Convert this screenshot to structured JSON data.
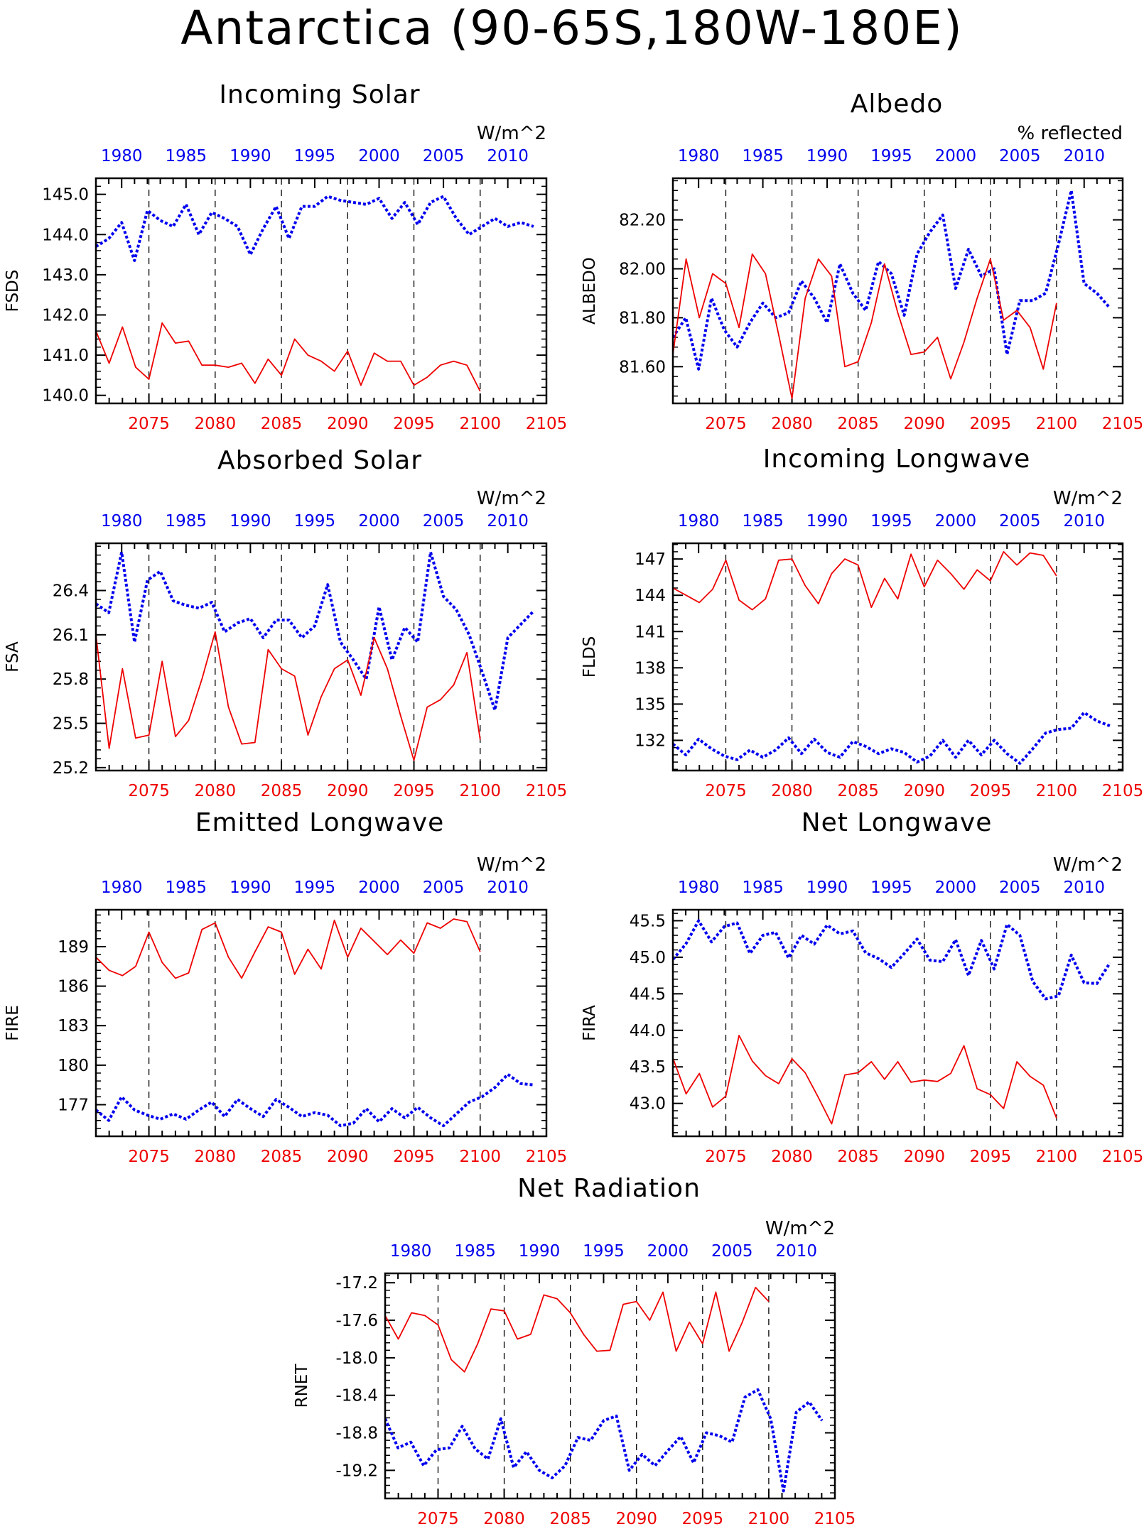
{
  "title": "Antarctica (90-65S,180W-180E)",
  "colors": {
    "ref_series": "#ee0000",
    "model_series": "#0000ee",
    "axis": "#000000"
  },
  "chart_data": [
    {
      "type": "line",
      "title": "Incoming Solar",
      "units": "W/m^2",
      "ylabel": "FSDS",
      "ylim": [
        139.8,
        145.4
      ],
      "yticks": [
        "140.0",
        "141.0",
        "142.0",
        "143.0",
        "144.0",
        "145.0"
      ],
      "top_axis": {
        "range": [
          1978,
          2013
        ],
        "ticks": [
          "1980",
          "1985",
          "1990",
          "1995",
          "2000",
          "2005",
          "2010"
        ]
      },
      "bottom_axis": {
        "range": [
          2071,
          2105
        ],
        "ticks": [
          "2075",
          "2080",
          "2085",
          "2090",
          "2095",
          "2100",
          "2105"
        ]
      },
      "series": [
        {
          "style": "dotted",
          "axis": "top",
          "x_start": 1978,
          "values": [
            143.7,
            143.9,
            144.3,
            143.35,
            144.6,
            144.35,
            144.2,
            144.75,
            144.0,
            144.55,
            144.4,
            144.2,
            143.5,
            144.15,
            144.7,
            143.9,
            144.7,
            144.7,
            144.95,
            144.85,
            144.8,
            144.75,
            144.9,
            144.4,
            144.8,
            144.25,
            144.8,
            144.95,
            144.4,
            144.0,
            144.2,
            144.4,
            144.2,
            144.3,
            144.2
          ]
        },
        {
          "style": "solid",
          "axis": "bottom",
          "x_start": 2071,
          "values": [
            141.6,
            140.8,
            141.7,
            140.7,
            140.4,
            141.8,
            141.3,
            141.35,
            140.75,
            140.75,
            140.7,
            140.8,
            140.3,
            140.9,
            140.5,
            141.4,
            141.0,
            140.85,
            140.6,
            141.1,
            140.25,
            141.05,
            140.85,
            140.85,
            140.25,
            140.45,
            140.75,
            140.85,
            140.75,
            140.1
          ]
        }
      ]
    },
    {
      "type": "line",
      "title": "Albedo",
      "units": "% reflected",
      "ylabel": "ALBEDO",
      "ylim": [
        81.45,
        82.37
      ],
      "yticks": [
        "81.60",
        "81.80",
        "82.00",
        "82.20"
      ],
      "top_axis": {
        "range": [
          1978,
          2013
        ],
        "ticks": [
          "1980",
          "1985",
          "1990",
          "1995",
          "2000",
          "2005",
          "2010"
        ]
      },
      "bottom_axis": {
        "range": [
          2071,
          2105
        ],
        "ticks": [
          "2075",
          "2080",
          "2085",
          "2090",
          "2095",
          "2100",
          "2105"
        ]
      },
      "series": [
        {
          "style": "dotted",
          "axis": "top",
          "x_start": 1978,
          "values": [
            81.72,
            81.8,
            81.59,
            81.88,
            81.75,
            81.68,
            81.78,
            81.86,
            81.8,
            81.82,
            81.95,
            81.88,
            81.78,
            82.02,
            81.9,
            81.83,
            82.03,
            81.98,
            81.81,
            82.06,
            82.15,
            82.22,
            81.92,
            82.08,
            81.97,
            82.0,
            81.65,
            81.87,
            81.87,
            81.9,
            82.1,
            82.32,
            81.94,
            81.9,
            81.84
          ]
        },
        {
          "style": "solid",
          "axis": "bottom",
          "x_start": 2071,
          "values": [
            81.65,
            82.04,
            81.8,
            81.98,
            81.94,
            81.76,
            82.06,
            81.98,
            81.73,
            81.47,
            81.88,
            82.04,
            81.97,
            81.6,
            81.62,
            81.78,
            82.02,
            81.82,
            81.65,
            81.66,
            81.72,
            81.55,
            81.7,
            81.88,
            82.04,
            81.79,
            81.83,
            81.76,
            81.59,
            81.86
          ]
        }
      ]
    },
    {
      "type": "line",
      "title": "Absorbed Solar",
      "units": "W/m^2",
      "ylabel": "FSA",
      "ylim": [
        25.18,
        26.72
      ],
      "yticks": [
        "25.2",
        "25.5",
        "25.8",
        "26.1",
        "26.4"
      ],
      "top_axis": {
        "range": [
          1978,
          2013
        ],
        "ticks": [
          "1980",
          "1985",
          "1990",
          "1995",
          "2000",
          "2005",
          "2010"
        ]
      },
      "bottom_axis": {
        "range": [
          2071,
          2105
        ],
        "ticks": [
          "2075",
          "2080",
          "2085",
          "2090",
          "2095",
          "2100",
          "2105"
        ]
      },
      "series": [
        {
          "style": "dotted",
          "axis": "top",
          "x_start": 1978,
          "values": [
            26.31,
            26.25,
            26.66,
            26.05,
            26.47,
            26.53,
            26.33,
            26.3,
            26.28,
            26.32,
            26.12,
            26.18,
            26.21,
            26.08,
            26.2,
            26.2,
            26.08,
            26.16,
            26.44,
            26.05,
            25.93,
            25.8,
            26.29,
            25.93,
            26.15,
            26.05,
            26.66,
            26.36,
            26.27,
            26.1,
            25.85,
            25.59,
            26.08,
            26.17,
            26.26
          ]
        },
        {
          "style": "solid",
          "axis": "bottom",
          "x_start": 2071,
          "values": [
            26.1,
            25.33,
            25.87,
            25.4,
            25.42,
            25.92,
            25.41,
            25.52,
            25.8,
            26.12,
            25.61,
            25.36,
            25.37,
            26.0,
            25.87,
            25.82,
            25.42,
            25.68,
            25.87,
            25.93,
            25.69,
            26.08,
            25.87,
            25.55,
            25.25,
            25.61,
            25.66,
            25.76,
            25.98,
            25.39
          ]
        }
      ]
    },
    {
      "type": "line",
      "title": "Incoming Longwave",
      "units": "W/m^2",
      "ylabel": "FLDS",
      "ylim": [
        129.5,
        148.3
      ],
      "yticks": [
        "132",
        "135",
        "138",
        "141",
        "144",
        "147"
      ],
      "top_axis": {
        "range": [
          1978,
          2013
        ],
        "ticks": [
          "1980",
          "1985",
          "1990",
          "1995",
          "2000",
          "2005",
          "2010"
        ]
      },
      "bottom_axis": {
        "range": [
          2071,
          2105
        ],
        "ticks": [
          "2075",
          "2080",
          "2085",
          "2090",
          "2095",
          "2100",
          "2105"
        ]
      },
      "series": [
        {
          "style": "dotted",
          "axis": "top",
          "x_start": 1978,
          "values": [
            131.7,
            130.8,
            132.1,
            131.3,
            130.7,
            130.4,
            131.2,
            130.6,
            131.2,
            132.2,
            130.9,
            132.1,
            131.0,
            130.6,
            131.9,
            131.5,
            130.9,
            131.3,
            131.0,
            130.2,
            130.7,
            132.0,
            130.6,
            132.0,
            130.8,
            132.0,
            130.9,
            130.1,
            131.3,
            132.6,
            132.9,
            133.0,
            134.3,
            133.6,
            133.2
          ]
        },
        {
          "style": "solid",
          "axis": "bottom",
          "x_start": 2071,
          "values": [
            144.6,
            144.0,
            143.4,
            144.5,
            146.9,
            143.6,
            142.8,
            143.7,
            146.9,
            147.0,
            144.8,
            143.3,
            145.8,
            147.0,
            146.5,
            143.0,
            145.4,
            143.7,
            147.4,
            144.7,
            146.9,
            145.8,
            144.5,
            146.1,
            145.2,
            147.6,
            146.5,
            147.5,
            147.3,
            145.6
          ]
        }
      ]
    },
    {
      "type": "line",
      "title": "Emitted Longwave",
      "units": "W/m^2",
      "ylabel": "FIRE",
      "ylim": [
        174.6,
        191.8
      ],
      "yticks": [
        "177",
        "180",
        "183",
        "186",
        "189"
      ],
      "top_axis": {
        "range": [
          1978,
          2013
        ],
        "ticks": [
          "1980",
          "1985",
          "1990",
          "1995",
          "2000",
          "2005",
          "2010"
        ]
      },
      "bottom_axis": {
        "range": [
          2071,
          2105
        ],
        "ticks": [
          "2075",
          "2080",
          "2085",
          "2090",
          "2095",
          "2100",
          "2105"
        ]
      },
      "series": [
        {
          "style": "dotted",
          "axis": "top",
          "x_start": 1978,
          "values": [
            176.6,
            175.8,
            177.6,
            176.6,
            176.2,
            175.9,
            176.3,
            175.9,
            176.6,
            177.2,
            176.1,
            177.4,
            176.7,
            176.1,
            177.4,
            176.8,
            176.1,
            176.4,
            176.2,
            175.4,
            175.6,
            176.7,
            175.7,
            176.7,
            176.0,
            176.8,
            176.0,
            175.4,
            176.3,
            177.2,
            177.6,
            178.3,
            179.3,
            178.6,
            178.5
          ]
        },
        {
          "style": "solid",
          "axis": "bottom",
          "x_start": 2071,
          "values": [
            188.2,
            187.2,
            186.8,
            187.5,
            190.1,
            187.8,
            186.6,
            187.0,
            190.3,
            190.8,
            188.2,
            186.6,
            188.6,
            190.5,
            190.1,
            186.9,
            188.8,
            187.3,
            191.0,
            188.2,
            190.4,
            189.4,
            188.4,
            189.5,
            188.5,
            190.8,
            190.4,
            191.1,
            190.9,
            188.6
          ]
        }
      ]
    },
    {
      "type": "line",
      "title": "Net Longwave",
      "units": "W/m^2",
      "ylabel": "FIRA",
      "ylim": [
        42.55,
        45.65
      ],
      "yticks": [
        "43.0",
        "43.5",
        "44.0",
        "44.5",
        "45.0",
        "45.5"
      ],
      "top_axis": {
        "range": [
          1978,
          2013
        ],
        "ticks": [
          "1980",
          "1985",
          "1990",
          "1995",
          "2000",
          "2005",
          "2010"
        ]
      },
      "bottom_axis": {
        "range": [
          2071,
          2105
        ],
        "ticks": [
          "2075",
          "2080",
          "2085",
          "2090",
          "2095",
          "2100",
          "2105"
        ]
      },
      "series": [
        {
          "style": "dotted",
          "axis": "top",
          "x_start": 1978,
          "values": [
            44.97,
            45.18,
            45.5,
            45.21,
            45.42,
            45.47,
            45.05,
            45.3,
            45.34,
            44.99,
            45.3,
            45.18,
            45.44,
            45.32,
            45.36,
            45.06,
            44.98,
            44.86,
            45.05,
            45.25,
            44.96,
            44.94,
            45.24,
            44.75,
            45.23,
            44.84,
            45.45,
            45.3,
            44.67,
            44.43,
            44.47,
            45.03,
            44.65,
            44.64,
            44.92
          ]
        },
        {
          "style": "solid",
          "axis": "bottom",
          "x_start": 2071,
          "values": [
            43.62,
            43.13,
            43.41,
            42.95,
            43.1,
            43.93,
            43.58,
            43.38,
            43.27,
            43.61,
            43.42,
            43.08,
            42.72,
            43.39,
            43.42,
            43.57,
            43.33,
            43.57,
            43.29,
            43.32,
            43.3,
            43.41,
            43.79,
            43.2,
            43.12,
            42.93,
            43.57,
            43.37,
            43.25,
            42.8
          ]
        }
      ]
    },
    {
      "type": "line",
      "title": "Net Radiation",
      "units": "W/m^2",
      "ylabel": "RNET",
      "ylim": [
        -19.5,
        -17.1
      ],
      "yticks": [
        "-19.2",
        "-18.8",
        "-18.4",
        "-18.0",
        "-17.6",
        "-17.2"
      ],
      "top_axis": {
        "range": [
          1978,
          2013
        ],
        "ticks": [
          "1980",
          "1985",
          "1990",
          "1995",
          "2000",
          "2005",
          "2010"
        ]
      },
      "bottom_axis": {
        "range": [
          2071,
          2105
        ],
        "ticks": [
          "2075",
          "2080",
          "2085",
          "2090",
          "2095",
          "2100",
          "2105"
        ]
      },
      "series": [
        {
          "style": "dotted",
          "axis": "top",
          "x_start": 1978,
          "values": [
            -18.65,
            -18.96,
            -18.9,
            -19.15,
            -18.98,
            -18.96,
            -18.73,
            -18.97,
            -19.08,
            -18.65,
            -19.17,
            -19.0,
            -19.2,
            -19.28,
            -19.15,
            -18.85,
            -18.88,
            -18.67,
            -18.62,
            -19.2,
            -19.03,
            -19.15,
            -18.99,
            -18.84,
            -19.12,
            -18.8,
            -18.83,
            -18.9,
            -18.42,
            -18.34,
            -18.65,
            -19.42,
            -18.58,
            -18.47,
            -18.67
          ]
        },
        {
          "style": "solid",
          "axis": "bottom",
          "x_start": 2071,
          "values": [
            -17.55,
            -17.8,
            -17.52,
            -17.55,
            -17.65,
            -18.02,
            -18.15,
            -17.85,
            -17.48,
            -17.5,
            -17.8,
            -17.75,
            -17.33,
            -17.37,
            -17.52,
            -17.75,
            -17.93,
            -17.92,
            -17.43,
            -17.4,
            -17.6,
            -17.3,
            -17.93,
            -17.62,
            -17.85,
            -17.3,
            -17.93,
            -17.62,
            -17.25,
            -17.4
          ]
        }
      ]
    }
  ]
}
